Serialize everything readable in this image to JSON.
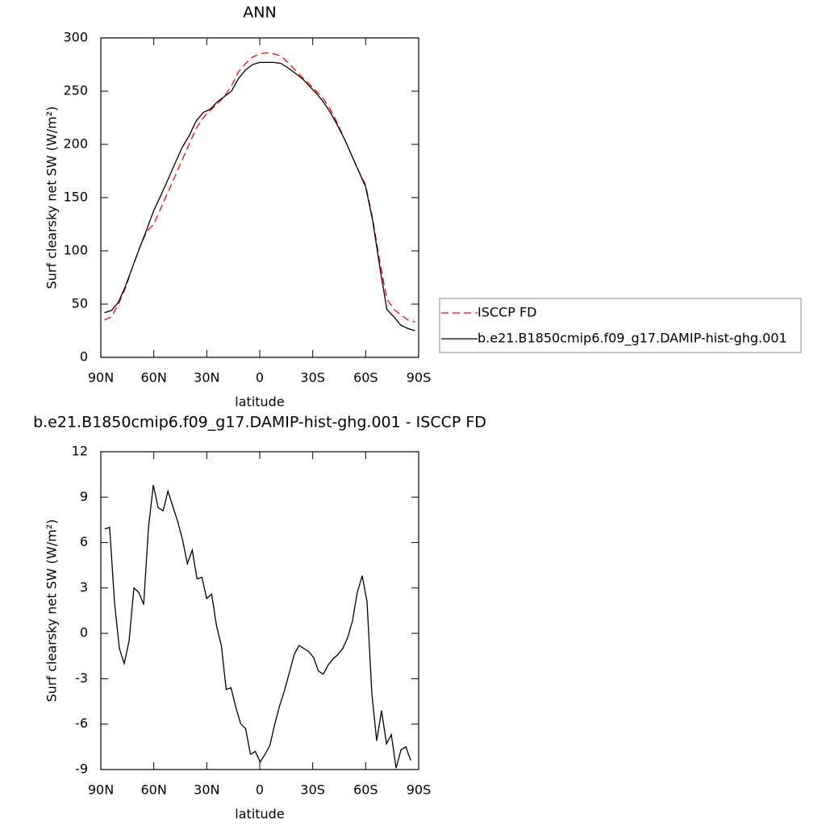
{
  "chart_data": [
    {
      "type": "line",
      "title": "ANN",
      "x_label": "latitude",
      "y_label": "Surf clearsky net SW (W/m²)",
      "xlim": [
        90,
        -90
      ],
      "xticks": [
        {
          "value": 90,
          "label": "90N"
        },
        {
          "value": 60,
          "label": "60N"
        },
        {
          "value": 30,
          "label": "30N"
        },
        0,
        {
          "value": -30,
          "label": "30S"
        },
        {
          "value": -60,
          "label": "60S"
        },
        {
          "value": -90,
          "label": "90S"
        }
      ],
      "ylim": [
        0,
        300
      ],
      "yticks": [
        0,
        50,
        100,
        150,
        200,
        250,
        300
      ],
      "legend": "right",
      "x": [
        88,
        84,
        80,
        76,
        72,
        68,
        64,
        60,
        56,
        52,
        48,
        44,
        40,
        36,
        32,
        28,
        24,
        20,
        16,
        12,
        8,
        4,
        0,
        -4,
        -8,
        -12,
        -16,
        -20,
        -24,
        -28,
        -32,
        -36,
        -40,
        -44,
        -48,
        -52,
        -56,
        -60,
        -64,
        -68,
        -72,
        -76,
        -80,
        -84,
        -88
      ],
      "series": [
        {
          "name": "ISCCP FD",
          "color": "#ff0000",
          "linestyle": "dashed",
          "values": [
            35,
            38,
            50,
            65,
            85,
            103,
            118,
            125,
            140,
            155,
            170,
            185,
            200,
            215,
            225,
            232,
            238,
            245,
            255,
            268,
            276,
            282,
            285,
            286,
            285,
            283,
            277,
            270,
            263,
            257,
            250,
            243,
            233,
            220,
            205,
            190,
            175,
            162,
            130,
            90,
            55,
            45,
            40,
            35,
            33
          ]
        },
        {
          "name": "b.e21.B1850cmip6.f09_g17.DAMIP-hist-ghg.001",
          "color": "#000000",
          "linestyle": "solid",
          "values": [
            42,
            44,
            52,
            67,
            85,
            103,
            120,
            138,
            152,
            167,
            182,
            197,
            208,
            222,
            230,
            233,
            240,
            245,
            250,
            262,
            270,
            275,
            277,
            277,
            277,
            276,
            272,
            267,
            262,
            255,
            248,
            240,
            230,
            218,
            205,
            190,
            175,
            160,
            128,
            85,
            45,
            38,
            30,
            27,
            25
          ]
        }
      ]
    },
    {
      "type": "line",
      "title": "b.e21.B1850cmip6.f09_g17.DAMIP-hist-ghg.001 - ISCCP FD",
      "x_label": "latitude",
      "y_label": "Surf clearsky net SW (W/m²)",
      "xlim": [
        90,
        -90
      ],
      "xticks": [
        {
          "value": 90,
          "label": "90N"
        },
        {
          "value": 60,
          "label": "60N"
        },
        {
          "value": 30,
          "label": "30N"
        },
        0,
        {
          "value": -30,
          "label": "30S"
        },
        {
          "value": -60,
          "label": "60S"
        },
        {
          "value": -90,
          "label": "90S"
        }
      ],
      "ylim": [
        -9,
        12
      ],
      "yticks": [
        -9,
        -6,
        -3,
        0,
        3,
        6,
        9,
        12
      ],
      "x": [
        87.75,
        85,
        82.25,
        79.5,
        76.75,
        74,
        71.25,
        68.5,
        65.75,
        63,
        60.25,
        57.5,
        54.75,
        52,
        49.25,
        46.5,
        43.75,
        41,
        38.25,
        35.5,
        32.75,
        30,
        27.25,
        24.5,
        21.75,
        19,
        16.25,
        13.5,
        10.75,
        8,
        5.25,
        2.5,
        -0.25,
        -3,
        -5.75,
        -8.5,
        -11.25,
        -14,
        -16.75,
        -19.5,
        -22.25,
        -25,
        -27.75,
        -30.5,
        -33.25,
        -36,
        -38.75,
        -41.5,
        -44.25,
        -47,
        -49.75,
        -52.5,
        -55.25,
        -58,
        -60.75,
        -63.5,
        -66.25,
        -69,
        -71.75,
        -74.5,
        -77.25,
        -80,
        -82.75,
        -85.5
      ],
      "series": [
        {
          "color": "#000000",
          "linestyle": "solid",
          "values": [
            6.9,
            7.0,
            2,
            -1,
            -2,
            -0.5,
            3,
            2.7,
            1.9,
            7,
            9.8,
            8.3,
            8.1,
            9.4,
            8.4,
            7.4,
            6.2,
            4.6,
            5.5,
            3.6,
            3.7,
            2.3,
            2.6,
            0.5,
            -0.8,
            -3.7,
            -3.6,
            -4.9,
            -6,
            -6.3,
            -8,
            -7.8,
            -8.5,
            -8,
            -7.4,
            -6,
            -4.8,
            -3.8,
            -2.6,
            -1.4,
            -0.8,
            -1,
            -1.2,
            -1.6,
            -2.5,
            -2.7,
            -2.1,
            -1.7,
            -1.4,
            -1.0,
            -0.3,
            0.8,
            2.7,
            3.8,
            2.1,
            -4,
            -7.1,
            -5.1,
            -7.3,
            -6.7,
            -8.9,
            -7.7,
            -7.5,
            -8.4
          ]
        }
      ]
    }
  ]
}
